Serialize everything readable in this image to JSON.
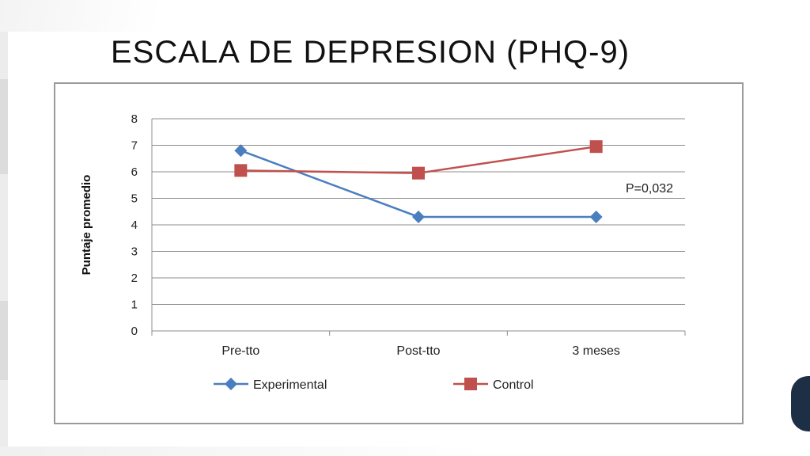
{
  "slide": {
    "title": "ESCALA DE DEPRESION (PHQ-9)"
  },
  "chart_data": {
    "type": "line",
    "categories": [
      "Pre-tto",
      "Post-tto",
      "3 meses"
    ],
    "series": [
      {
        "name": "Experimental",
        "values": [
          6.8,
          4.3,
          4.3
        ],
        "color": "#4a7ebf",
        "marker": "diamond"
      },
      {
        "name": "Control",
        "values": [
          6.05,
          5.95,
          6.95
        ],
        "color": "#c0504d",
        "marker": "square"
      }
    ],
    "ylabel": "Puntaje promedio",
    "xlabel": "",
    "ylim": [
      0,
      8
    ],
    "yticks": [
      0,
      1,
      2,
      3,
      4,
      5,
      6,
      7,
      8
    ],
    "grid": true,
    "legend": "bottom",
    "annotation": "P=0,032"
  }
}
